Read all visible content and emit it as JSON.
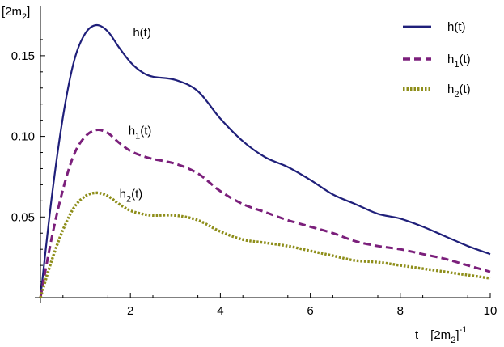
{
  "colors": {
    "axis": "#000000",
    "h": "#1f1f7a",
    "h1": "#7b1f7b",
    "h2": "#8e8e1a"
  },
  "chart_data": {
    "type": "line",
    "title": "",
    "xlabel": {
      "main": "t",
      "unit_open": "[2m",
      "unit_sub": "2",
      "unit_close": "]",
      "unit_sup": "-1"
    },
    "ylabel": {
      "open": "[2m",
      "sub": "2",
      "close": "]"
    },
    "xlim": [
      0,
      10
    ],
    "ylim": [
      0,
      0.17
    ],
    "xticks": [
      2,
      4,
      6,
      8,
      10
    ],
    "xtick_labels": [
      "2",
      "4",
      "6",
      "8",
      "10"
    ],
    "yticks": [
      0.05,
      0.1,
      0.15
    ],
    "ytick_labels": [
      "0.05",
      "0.10",
      "0.15"
    ],
    "grid": false,
    "legend_position": "top-right",
    "x": [
      0,
      0.25,
      0.5,
      0.75,
      1.0,
      1.25,
      1.5,
      1.75,
      2.0,
      2.25,
      2.5,
      3.0,
      3.5,
      4.0,
      4.5,
      5.0,
      5.5,
      6.0,
      6.5,
      7.0,
      7.5,
      8.0,
      8.5,
      9.0,
      9.5,
      10.0
    ],
    "series": [
      {
        "key": "h",
        "name_main": "h",
        "name_sub": "",
        "name_tail": "(t)",
        "style": "solid",
        "values": [
          0.0,
          0.062,
          0.112,
          0.147,
          0.164,
          0.169,
          0.165,
          0.155,
          0.146,
          0.14,
          0.137,
          0.135,
          0.128,
          0.111,
          0.097,
          0.087,
          0.081,
          0.073,
          0.064,
          0.058,
          0.052,
          0.049,
          0.044,
          0.038,
          0.032,
          0.027
        ]
      },
      {
        "key": "h1",
        "name_main": "h",
        "name_sub": "1",
        "name_tail": "(t)",
        "style": "dashed",
        "values": [
          0.0,
          0.037,
          0.067,
          0.089,
          0.1,
          0.104,
          0.102,
          0.096,
          0.091,
          0.088,
          0.086,
          0.083,
          0.077,
          0.066,
          0.058,
          0.053,
          0.048,
          0.044,
          0.04,
          0.035,
          0.032,
          0.03,
          0.027,
          0.024,
          0.02,
          0.016
        ]
      },
      {
        "key": "h2",
        "name_main": "h",
        "name_sub": "2",
        "name_tail": "(t)",
        "style": "dotted",
        "values": [
          0.0,
          0.023,
          0.042,
          0.056,
          0.063,
          0.065,
          0.063,
          0.058,
          0.054,
          0.052,
          0.051,
          0.051,
          0.048,
          0.041,
          0.036,
          0.034,
          0.032,
          0.029,
          0.026,
          0.023,
          0.022,
          0.02,
          0.018,
          0.016,
          0.014,
          0.012
        ]
      }
    ],
    "annotations": [
      {
        "series": "h",
        "x": 2.2,
        "y": 0.162
      },
      {
        "series": "h1",
        "x": 2.1,
        "y": 0.101
      },
      {
        "series": "h2",
        "x": 1.9,
        "y": 0.062
      }
    ]
  }
}
